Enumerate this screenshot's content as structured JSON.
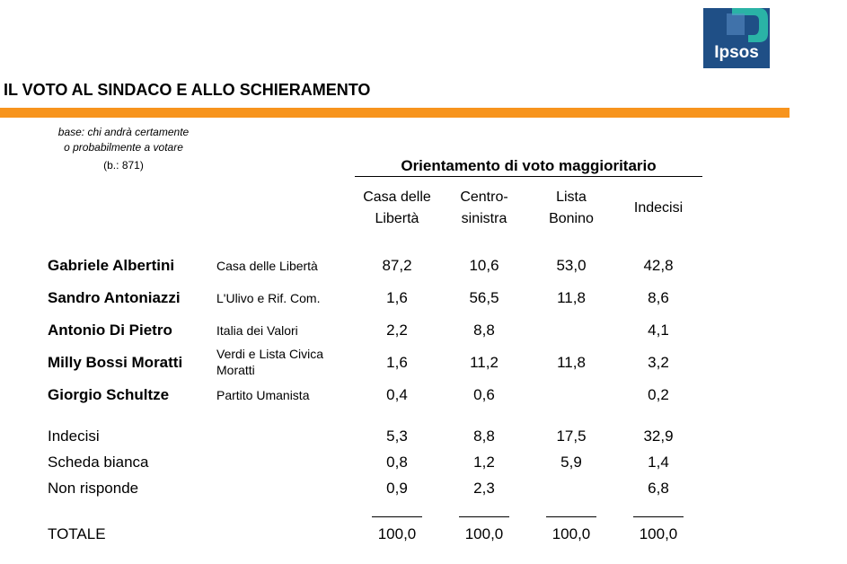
{
  "logo": {
    "text": "Ipsos",
    "bg": "#1f4f86",
    "accent": "#2ab3a6"
  },
  "title": "IL VOTO AL SINDACO E ALLO SCHIERAMENTO",
  "accent_bar_color": "#f7941d",
  "base": {
    "line1": "base: chi andrà certamente",
    "line2": "o probabilmente a votare",
    "n": "(b.: 871)"
  },
  "group_title": "Orientamento di voto maggioritario",
  "columns": [
    {
      "l1": "Casa delle",
      "l2": "Libertà"
    },
    {
      "l1": "Centro-",
      "l2": "sinistra"
    },
    {
      "l1": "Lista",
      "l2": "Bonino"
    },
    {
      "l1": "Indecisi",
      "l2": ""
    }
  ],
  "candidates": [
    {
      "name": "Gabriele Albertini",
      "party": "Casa delle Libertà",
      "party2": "",
      "values": [
        "87,2",
        "10,6",
        "53,0",
        "42,8"
      ]
    },
    {
      "name": "Sandro Antoniazzi",
      "party": "L'Ulivo e Rif. Com.",
      "party2": "",
      "values": [
        "1,6",
        "56,5",
        "11,8",
        "8,6"
      ]
    },
    {
      "name": "Antonio Di Pietro",
      "party": "Italia dei Valori",
      "party2": "",
      "values": [
        "2,2",
        "8,8",
        "",
        "4,1"
      ]
    },
    {
      "name": "Milly Bossi Moratti",
      "party": "Verdi e Lista Civica",
      "party2": "Moratti",
      "values": [
        "1,6",
        "11,2",
        "11,8",
        "3,2"
      ]
    },
    {
      "name": "Giorgio Schultze",
      "party": "Partito Umanista",
      "party2": "",
      "values": [
        "0,4",
        "0,6",
        "",
        "0,2"
      ]
    }
  ],
  "others": [
    {
      "label": "Indecisi",
      "values": [
        "5,3",
        "8,8",
        "17,5",
        "32,9"
      ]
    },
    {
      "label": "Scheda bianca",
      "values": [
        "0,8",
        "1,2",
        "5,9",
        "1,4"
      ]
    },
    {
      "label": "Non risponde",
      "values": [
        "0,9",
        "2,3",
        "",
        "6,8"
      ]
    }
  ],
  "total": {
    "label": "TOTALE",
    "values": [
      "100,0",
      "100,0",
      "100,0",
      "100,0"
    ]
  }
}
